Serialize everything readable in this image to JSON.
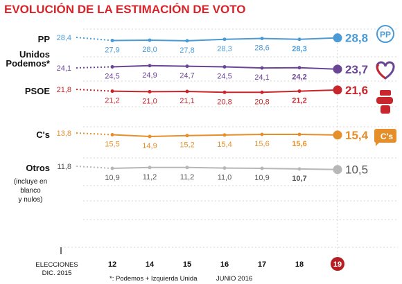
{
  "chart_data": {
    "type": "line",
    "title": "EVOLUCIÓN DE LA ESTIMACIÓN DE VOTO",
    "x_start_label": [
      "ELECCIONES",
      "DIC. 2015"
    ],
    "categories": [
      "12",
      "14",
      "15",
      "16",
      "17",
      "18",
      "19"
    ],
    "highlight_category": "19",
    "month_label": "JUNIO 2016",
    "footnote": "*: Podemos + Izquierda Unida",
    "ylim": [
      0,
      32
    ],
    "series": [
      {
        "key": "pp",
        "name": "PP",
        "color": "#4a9ad6",
        "start": "28,4",
        "start_value": 28.4,
        "values": [
          27.9,
          28.0,
          27.8,
          28.3,
          28.6,
          28.3,
          28.8
        ],
        "labels": [
          "27,9",
          "28,0",
          "27,8",
          "28,3",
          "28,6",
          "28,3",
          "28,8"
        ]
      },
      {
        "key": "up",
        "name": "Unidos Podemos*",
        "name_lines": [
          "Unidos",
          "Podemos*"
        ],
        "color": "#6a4595",
        "start": "24,1",
        "start_value": 24.1,
        "values": [
          24.5,
          24.9,
          24.7,
          24.5,
          24.1,
          24.2,
          23.7
        ],
        "labels": [
          "24,5",
          "24,9",
          "24,7",
          "24,5",
          "24,1",
          "24,2",
          "23,7"
        ]
      },
      {
        "key": "psoe",
        "name": "PSOE",
        "color": "#c8262c",
        "start": "21,8",
        "start_value": 21.8,
        "values": [
          21.2,
          21.0,
          21.1,
          20.8,
          20.8,
          21.2,
          21.6
        ],
        "labels": [
          "21,2",
          "21,0",
          "21,1",
          "20,8",
          "20,8",
          "21,2",
          "21,6"
        ]
      },
      {
        "key": "cs",
        "name": "C's",
        "color": "#e58f2a",
        "start": "13,8",
        "start_value": 13.8,
        "values": [
          15.5,
          14.9,
          15.2,
          15.4,
          15.6,
          15.6,
          15.4
        ],
        "labels": [
          "15,5",
          "14,9",
          "15,2",
          "15,4",
          "15,6",
          "15,6",
          "15,4"
        ]
      },
      {
        "key": "otros",
        "name": "Otros",
        "name_sub": [
          "(incluye en",
          "blanco",
          "y nulos)"
        ],
        "color": "#b7b7b7",
        "label_color": "#555555",
        "start": "11,8",
        "start_value": 11.8,
        "values": [
          10.9,
          11.2,
          11.2,
          11.0,
          10.9,
          10.7,
          10.5
        ],
        "labels": [
          "10,9",
          "11,2",
          "11,2",
          "11,0",
          "10,9",
          "10,7",
          "10,5"
        ]
      }
    ],
    "logos": {
      "pp": "PP",
      "cs": "C's"
    }
  }
}
